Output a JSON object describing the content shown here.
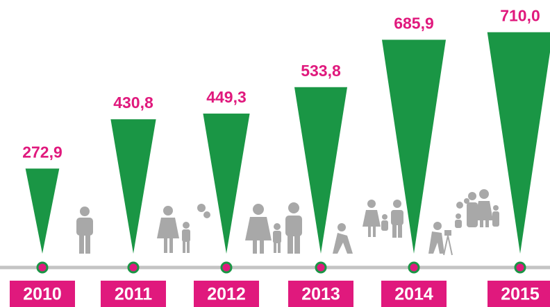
{
  "chart_data": {
    "type": "bar",
    "categories": [
      "2010",
      "2011",
      "2012",
      "2013",
      "2014",
      "2015"
    ],
    "values": [
      272.9,
      430.8,
      449.3,
      533.8,
      685.9,
      710.0
    ],
    "value_labels": [
      "272,9",
      "430,8",
      "449,3",
      "533,8",
      "685,9",
      "710,0"
    ],
    "color": "#1a9645",
    "label_color": "#e0197d"
  }
}
